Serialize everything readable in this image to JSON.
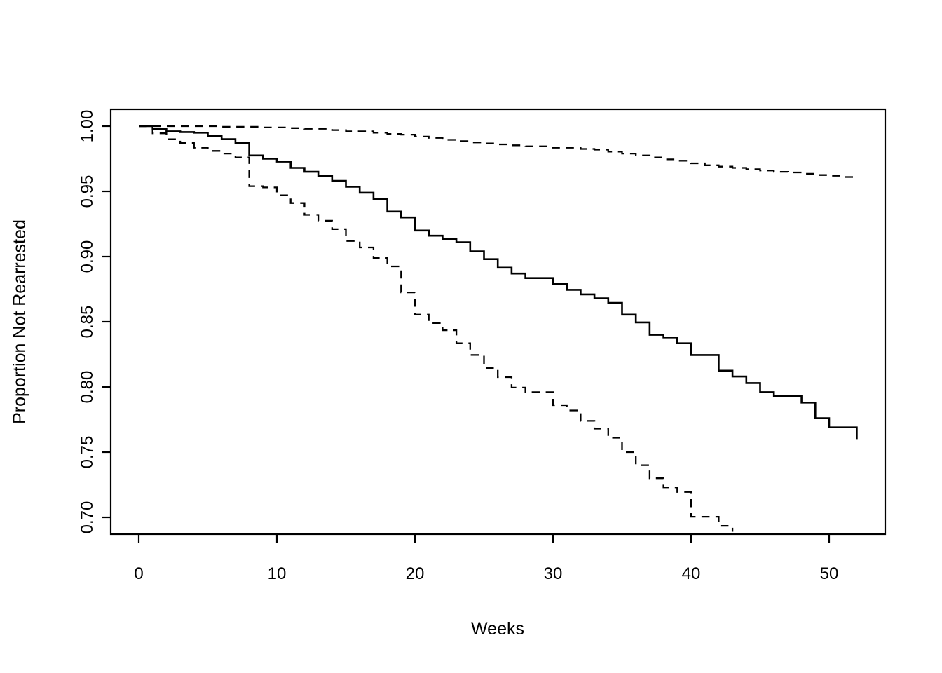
{
  "chart_data": {
    "type": "line",
    "subtype": "kaplan-meier-step",
    "title": "",
    "xlabel": "Weeks",
    "ylabel": "Proportion Not Rearrested",
    "xlim": [
      0,
      52
    ],
    "ylim": [
      0.69,
      1.0
    ],
    "grid": false,
    "legend": "none",
    "line_color": "#000000",
    "background_color": "#ffffff",
    "x_tick_values": [
      0,
      10,
      20,
      30,
      40,
      50
    ],
    "x_tick_labels": [
      "0",
      "10",
      "20",
      "30",
      "40",
      "50"
    ],
    "y_tick_values": [
      0.7,
      0.75,
      0.8,
      0.85,
      0.9,
      0.95,
      1.0
    ],
    "y_tick_labels": [
      "0.70",
      "0.75",
      "0.80",
      "0.85",
      "0.90",
      "0.95",
      "1.00"
    ],
    "series": [
      {
        "name": "upper-dashed",
        "style": "dashed",
        "points": [
          [
            0,
            1.0
          ],
          [
            6,
            0.9995
          ],
          [
            9,
            0.999
          ],
          [
            11,
            0.9985
          ],
          [
            12,
            0.998
          ],
          [
            14,
            0.997
          ],
          [
            15,
            0.996
          ],
          [
            17,
            0.995
          ],
          [
            18,
            0.994
          ],
          [
            19,
            0.9935
          ],
          [
            20,
            0.992
          ],
          [
            21,
            0.991
          ],
          [
            22,
            0.9895
          ],
          [
            23,
            0.9885
          ],
          [
            24,
            0.9875
          ],
          [
            25,
            0.9867
          ],
          [
            26,
            0.986
          ],
          [
            27,
            0.9853
          ],
          [
            28,
            0.9845
          ],
          [
            30,
            0.9835
          ],
          [
            32,
            0.9825
          ],
          [
            33,
            0.982
          ],
          [
            34,
            0.9805
          ],
          [
            35,
            0.979
          ],
          [
            36,
            0.9775
          ],
          [
            37,
            0.976
          ],
          [
            38,
            0.9745
          ],
          [
            39,
            0.9735
          ],
          [
            40,
            0.9715
          ],
          [
            41,
            0.97
          ],
          [
            42,
            0.969
          ],
          [
            43,
            0.968
          ],
          [
            44,
            0.967
          ],
          [
            45,
            0.966
          ],
          [
            46,
            0.965
          ],
          [
            47,
            0.9645
          ],
          [
            48,
            0.9635
          ],
          [
            49,
            0.9625
          ],
          [
            50,
            0.962
          ],
          [
            51,
            0.961
          ],
          [
            52,
            0.96
          ]
        ]
      },
      {
        "name": "middle-solid",
        "style": "solid",
        "points": [
          [
            0,
            1.0
          ],
          [
            1,
            0.9977
          ],
          [
            2,
            0.996
          ],
          [
            3,
            0.9955
          ],
          [
            4,
            0.995
          ],
          [
            5,
            0.9925
          ],
          [
            6,
            0.99
          ],
          [
            7,
            0.987
          ],
          [
            8,
            0.9775
          ],
          [
            9,
            0.975
          ],
          [
            10,
            0.9728
          ],
          [
            11,
            0.968
          ],
          [
            12,
            0.965
          ],
          [
            13,
            0.962
          ],
          [
            14,
            0.958
          ],
          [
            15,
            0.9535
          ],
          [
            16,
            0.949
          ],
          [
            17,
            0.944
          ],
          [
            18,
            0.9345
          ],
          [
            19,
            0.93
          ],
          [
            20,
            0.92
          ],
          [
            21,
            0.916
          ],
          [
            22,
            0.9135
          ],
          [
            23,
            0.911
          ],
          [
            24,
            0.904
          ],
          [
            25,
            0.898
          ],
          [
            26,
            0.8915
          ],
          [
            27,
            0.887
          ],
          [
            28,
            0.8835
          ],
          [
            30,
            0.879
          ],
          [
            31,
            0.8745
          ],
          [
            32,
            0.871
          ],
          [
            33,
            0.868
          ],
          [
            34,
            0.8645
          ],
          [
            35,
            0.8555
          ],
          [
            36,
            0.8495
          ],
          [
            37,
            0.84
          ],
          [
            38,
            0.838
          ],
          [
            39,
            0.8335
          ],
          [
            40,
            0.8245
          ],
          [
            42,
            0.8125
          ],
          [
            43,
            0.808
          ],
          [
            44,
            0.803
          ],
          [
            45,
            0.796
          ],
          [
            46,
            0.793
          ],
          [
            48,
            0.788
          ],
          [
            49,
            0.776
          ],
          [
            50,
            0.769
          ],
          [
            52,
            0.76
          ]
        ]
      },
      {
        "name": "lower-dashed",
        "style": "dashed",
        "points": [
          [
            0,
            1.0
          ],
          [
            1,
            0.9945
          ],
          [
            2,
            0.99
          ],
          [
            3,
            0.987
          ],
          [
            4,
            0.9835
          ],
          [
            5,
            0.981
          ],
          [
            6,
            0.979
          ],
          [
            7,
            0.976
          ],
          [
            8,
            0.954
          ],
          [
            9,
            0.953
          ],
          [
            10,
            0.947
          ],
          [
            11,
            0.941
          ],
          [
            12,
            0.932
          ],
          [
            13,
            0.9275
          ],
          [
            14,
            0.921
          ],
          [
            15,
            0.912
          ],
          [
            16,
            0.907
          ],
          [
            17,
            0.899
          ],
          [
            18,
            0.8925
          ],
          [
            19,
            0.8725
          ],
          [
            20,
            0.8555
          ],
          [
            21,
            0.849
          ],
          [
            22,
            0.8435
          ],
          [
            23,
            0.8335
          ],
          [
            24,
            0.8245
          ],
          [
            25,
            0.8145
          ],
          [
            26,
            0.8075
          ],
          [
            27,
            0.7995
          ],
          [
            28,
            0.796
          ],
          [
            30,
            0.786
          ],
          [
            31,
            0.782
          ],
          [
            32,
            0.774
          ],
          [
            33,
            0.768
          ],
          [
            34,
            0.761
          ],
          [
            35,
            0.75
          ],
          [
            36,
            0.74
          ],
          [
            37,
            0.73
          ],
          [
            38,
            0.723
          ],
          [
            39,
            0.7195
          ],
          [
            40,
            0.7005
          ],
          [
            42,
            0.6935
          ],
          [
            43,
            0.689
          ]
        ]
      }
    ]
  }
}
